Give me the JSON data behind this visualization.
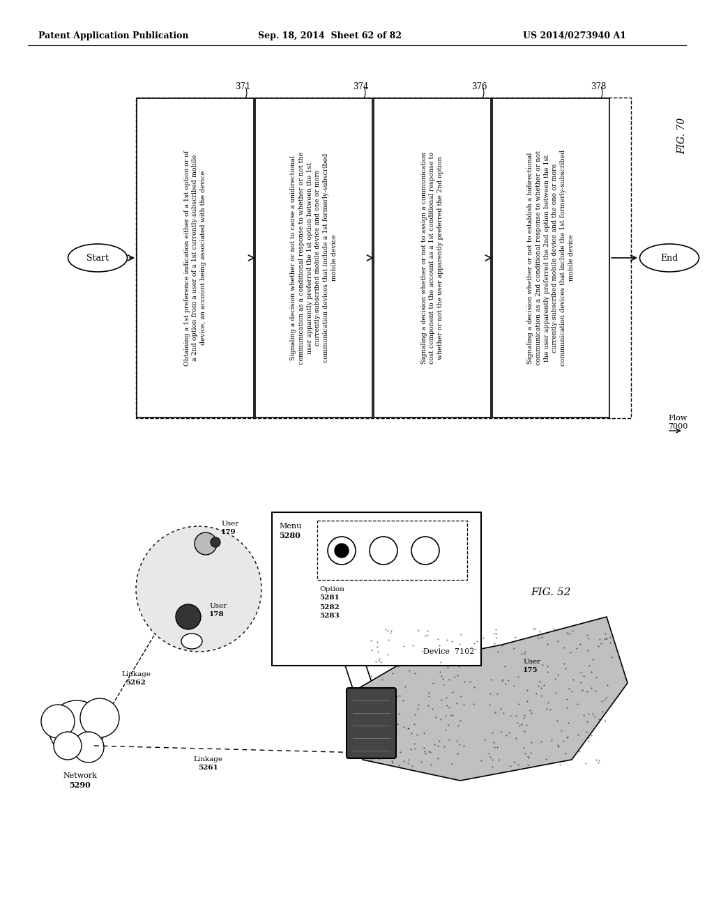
{
  "header_left": "Patent Application Publication",
  "header_mid": "Sep. 18, 2014  Sheet 62 of 82",
  "header_right": "US 2014/0273940 A1",
  "fig70_label": "FIG. 70",
  "flow_label": "Flow\n7000",
  "start_label": "Start",
  "end_label": "End",
  "box371_text": "Obtaining a 1st preference indication either of a 1st option or of\na 2nd option from a user of a 1st currently-subscribed mobile\ndevice, an account being associated with the device",
  "box374_text": "Signaling a decision whether or not to cause a unidirectional\ncommunication as a conditional response to whether or not the\nuser apparently preferred the 1st option between the 1st\ncurrently-subscribed mobile device and one or more\ncommunication devices that include a 1st formerly-subscribed\nmobile device",
  "box376_text": "Signaling a decision whether or not to assign a communication\ncost component to the account as a 1st conditional response to\nwhether or not the user apparently preferred the 2nd option",
  "box378_text": "Signaling a decision whether or not to establish a bidirectional\ncommunication as a 2nd conditional response to whether or not\nthe user apparently preferred the 2nd option between the 1st\ncurrently-subscribed mobile device and the one or more\ncommunication devices that include the 1st formerly-subscribed\nmobile device",
  "fig52_label": "FIG. 52",
  "background_color": "#ffffff"
}
